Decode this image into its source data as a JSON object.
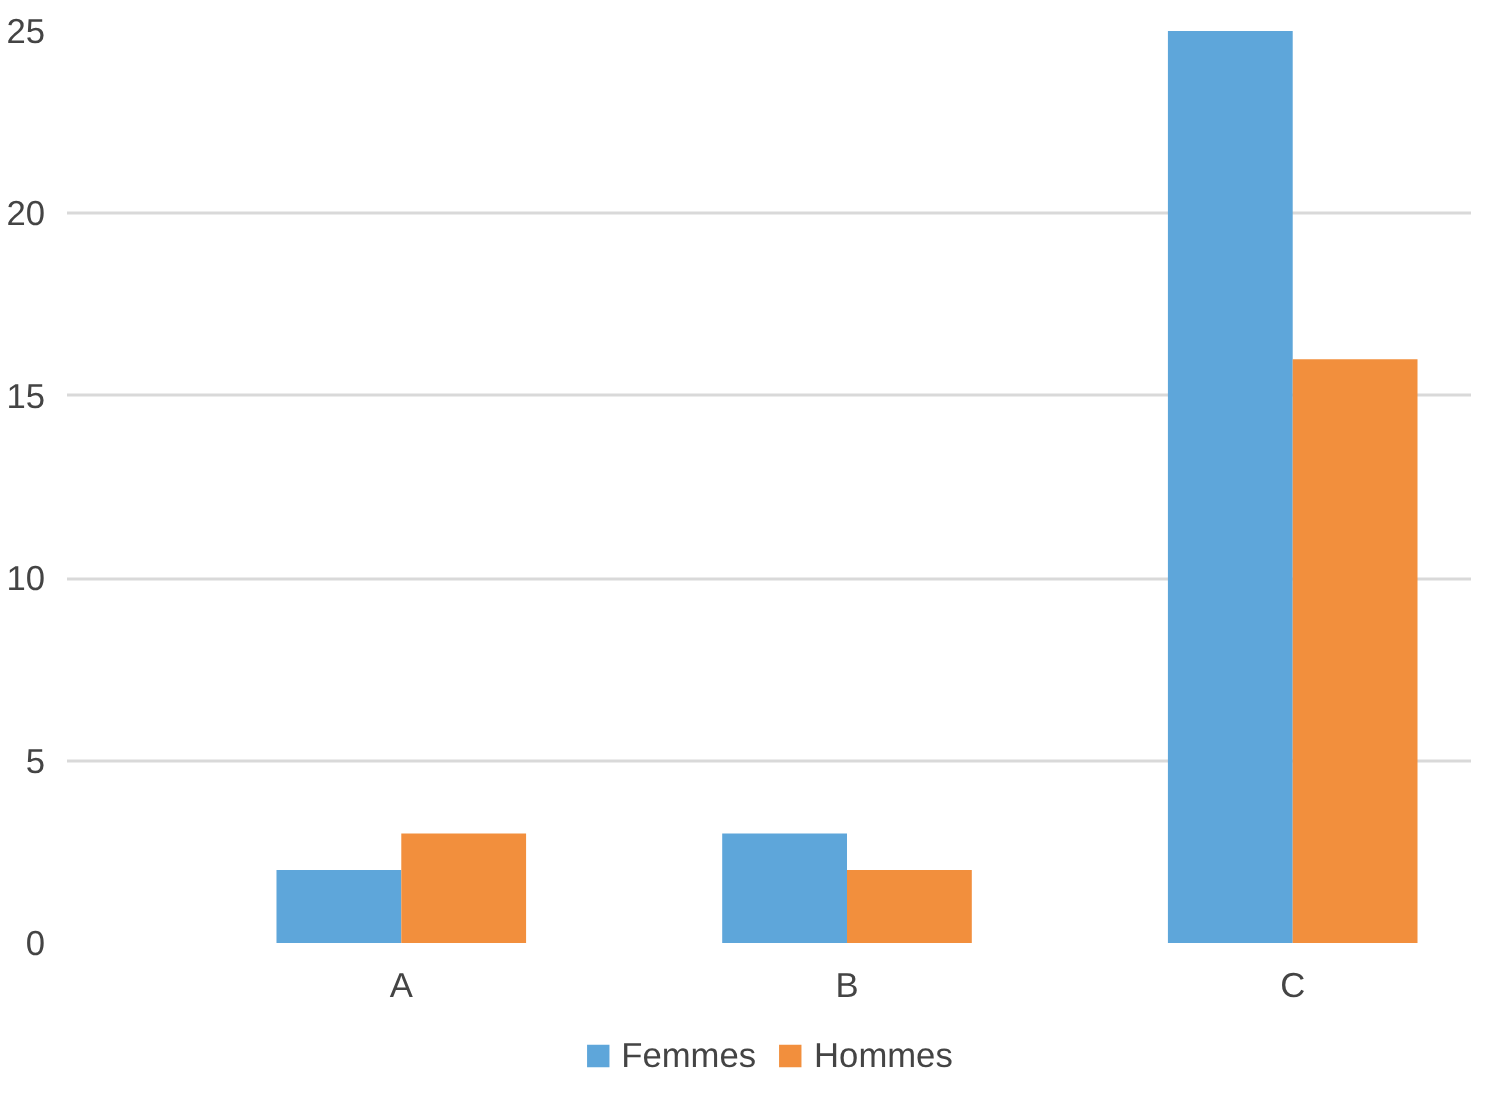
{
  "chart_data": {
    "type": "bar",
    "categories": [
      "A",
      "B",
      "C"
    ],
    "series": [
      {
        "name": "Femmes",
        "color": "#5ea6da",
        "values": [
          2,
          3,
          25
        ]
      },
      {
        "name": "Hommes",
        "color": "#f28f3d",
        "values": [
          3,
          2,
          16
        ]
      }
    ],
    "ylim": [
      0,
      25
    ],
    "yticks": [
      0,
      5,
      10,
      15,
      20,
      25
    ],
    "grid": "y",
    "legend": "bottom"
  }
}
